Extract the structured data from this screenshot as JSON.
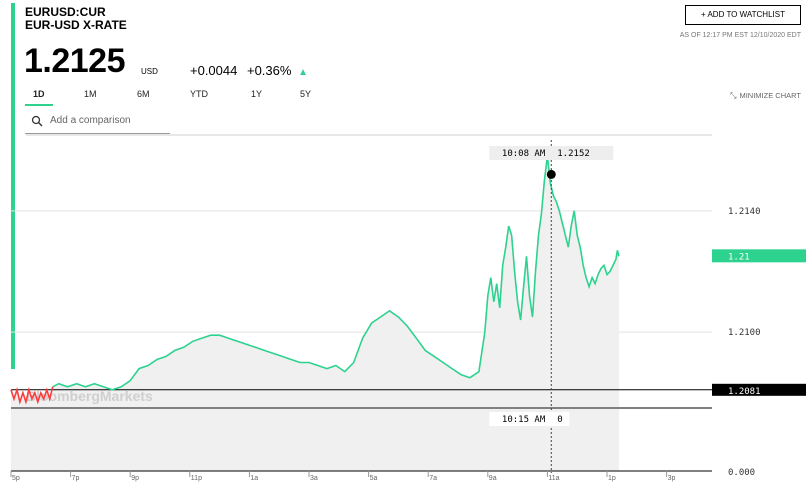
{
  "header": {
    "symbol": "EURUSD:CUR",
    "name": "EUR-USD X-RATE",
    "price": "1.2125",
    "currency": "USD",
    "change": "+0.0044",
    "change_pct": "+0.36%",
    "watchlist_button": "+ ADD TO WATCHLIST",
    "as_of": "AS OF 12:17 PM EST 12/10/2020 EDT"
  },
  "tabs": [
    "1D",
    "1M",
    "6M",
    "YTD",
    "1Y",
    "5Y"
  ],
  "minimize_label": "MINIMIZE CHART",
  "search": {
    "placeholder": "Add a comparison"
  },
  "chart_data": {
    "type": "line",
    "watermark": "BloombergMarkets",
    "x_ticks": [
      "5p",
      "7p",
      "9p",
      "11p",
      "1a",
      "3a",
      "5a",
      "7a",
      "9a",
      "11a",
      "1p",
      "3p"
    ],
    "y_ticks": [
      "1.2140",
      "1.2100"
    ],
    "lower_tick": "0.000",
    "ylim": [
      1.2075,
      1.2165
    ],
    "previous_close": "1.2081",
    "last_label": "1.21",
    "cursor_time": "10:08 AM",
    "cursor_value": "1.2152",
    "volume_time": "10:15 AM",
    "volume_value": "0",
    "colors": {
      "up": "#2dd28f",
      "down": "#ff3b3b",
      "panel": "#f0f0f0"
    },
    "series": [
      {
        "values": [
          [
            17.0,
            1.2081
          ],
          [
            17.1,
            1.2078
          ],
          [
            17.2,
            1.2081
          ],
          [
            17.3,
            1.2077
          ],
          [
            17.4,
            1.208
          ],
          [
            17.5,
            1.2077
          ],
          [
            17.6,
            1.2081
          ],
          [
            17.7,
            1.2078
          ],
          [
            17.8,
            1.208
          ],
          [
            17.9,
            1.2077
          ],
          [
            18.0,
            1.208
          ],
          [
            18.1,
            1.2078
          ],
          [
            18.2,
            1.2081
          ],
          [
            18.3,
            1.2078
          ],
          [
            18.4,
            1.2082
          ],
          [
            18.6,
            1.2083
          ],
          [
            18.9,
            1.2082
          ],
          [
            19.2,
            1.2083
          ],
          [
            19.5,
            1.2082
          ],
          [
            19.8,
            1.2083
          ],
          [
            20.1,
            1.2082
          ],
          [
            20.4,
            1.2081
          ],
          [
            20.7,
            1.2082
          ],
          [
            21.0,
            1.2084
          ],
          [
            21.3,
            1.2088
          ],
          [
            21.6,
            1.2089
          ],
          [
            21.9,
            1.2091
          ],
          [
            22.2,
            1.2092
          ],
          [
            22.5,
            1.2094
          ],
          [
            22.8,
            1.2095
          ],
          [
            23.1,
            1.2097
          ],
          [
            23.4,
            1.2098
          ],
          [
            23.7,
            1.2099
          ],
          [
            24.0,
            1.2099
          ],
          [
            24.3,
            1.2098
          ],
          [
            24.6,
            1.2097
          ],
          [
            24.9,
            1.2096
          ],
          [
            25.2,
            1.2095
          ],
          [
            25.5,
            1.2094
          ],
          [
            25.8,
            1.2093
          ],
          [
            26.1,
            1.2092
          ],
          [
            26.4,
            1.2091
          ],
          [
            26.7,
            1.209
          ],
          [
            27.0,
            1.209
          ],
          [
            27.3,
            1.2089
          ],
          [
            27.6,
            1.2088
          ],
          [
            27.9,
            1.2089
          ],
          [
            28.2,
            1.2087
          ],
          [
            28.5,
            1.209
          ],
          [
            28.8,
            1.2098
          ],
          [
            29.1,
            1.2103
          ],
          [
            29.4,
            1.2105
          ],
          [
            29.7,
            1.2107
          ],
          [
            30.0,
            1.2105
          ],
          [
            30.3,
            1.2102
          ],
          [
            30.6,
            1.2098
          ],
          [
            30.9,
            1.2094
          ],
          [
            31.2,
            1.2092
          ],
          [
            31.5,
            1.209
          ],
          [
            31.8,
            1.2088
          ],
          [
            32.1,
            1.2086
          ],
          [
            32.4,
            1.2085
          ],
          [
            32.7,
            1.2087
          ],
          [
            32.9,
            1.21
          ],
          [
            33.0,
            1.2112
          ],
          [
            33.1,
            1.2118
          ],
          [
            33.2,
            1.211
          ],
          [
            33.3,
            1.2116
          ],
          [
            33.4,
            1.2108
          ],
          [
            33.5,
            1.2122
          ],
          [
            33.6,
            1.2128
          ],
          [
            33.7,
            1.2135
          ],
          [
            33.8,
            1.2132
          ],
          [
            33.9,
            1.212
          ],
          [
            34.0,
            1.211
          ],
          [
            34.1,
            1.2104
          ],
          [
            34.2,
            1.2115
          ],
          [
            34.3,
            1.2125
          ],
          [
            34.4,
            1.2112
          ],
          [
            34.5,
            1.2105
          ],
          [
            34.6,
            1.212
          ],
          [
            34.7,
            1.2132
          ],
          [
            34.8,
            1.2139
          ],
          [
            34.9,
            1.215
          ],
          [
            35.0,
            1.2158
          ],
          [
            35.1,
            1.2149
          ],
          [
            35.2,
            1.2145
          ],
          [
            35.3,
            1.2143
          ],
          [
            35.4,
            1.214
          ],
          [
            35.5,
            1.2136
          ],
          [
            35.6,
            1.2132
          ],
          [
            35.7,
            1.2128
          ],
          [
            35.8,
            1.2135
          ],
          [
            35.9,
            1.214
          ],
          [
            36.0,
            1.2132
          ],
          [
            36.1,
            1.2128
          ],
          [
            36.2,
            1.2122
          ],
          [
            36.3,
            1.2118
          ],
          [
            36.4,
            1.2115
          ],
          [
            36.5,
            1.2118
          ],
          [
            36.6,
            1.2116
          ],
          [
            36.7,
            1.2119
          ],
          [
            36.8,
            1.2121
          ],
          [
            36.9,
            1.2122
          ],
          [
            37.0,
            1.2119
          ],
          [
            37.1,
            1.212
          ],
          [
            37.2,
            1.2122
          ],
          [
            37.3,
            1.2124
          ],
          [
            37.35,
            1.2127
          ],
          [
            37.4,
            1.2125
          ]
        ]
      }
    ]
  }
}
